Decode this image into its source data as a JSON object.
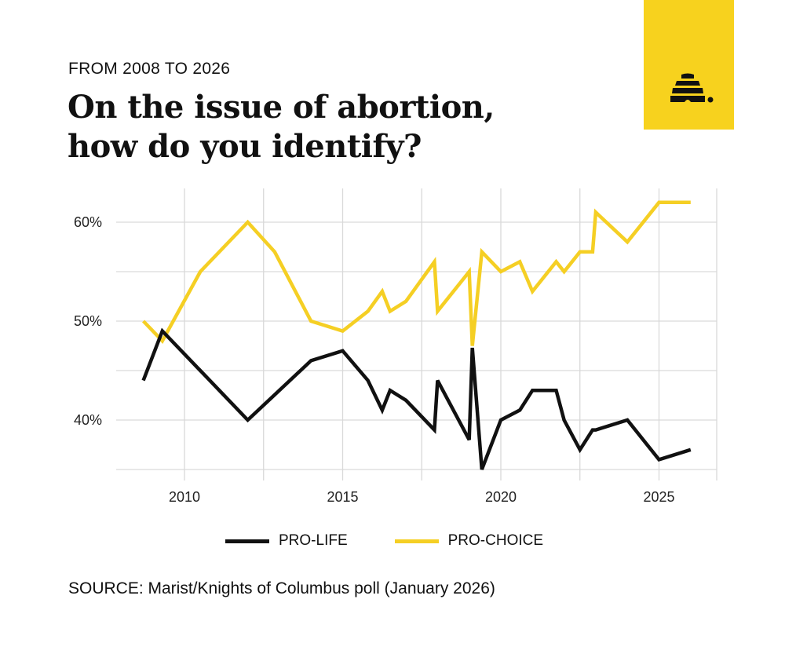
{
  "header": {
    "subtitle": "FROM 2008 TO 2026",
    "title_line1": "On the issue of abortion,",
    "title_line2": "how do you identify?"
  },
  "logo": {
    "icon": "beehive-icon",
    "background": "#f7d21e"
  },
  "source": "SOURCE: Marist/Knights of Columbus poll (January 2026)",
  "chart_data": {
    "type": "line",
    "title": "On the issue of abortion, how do you identify?",
    "xlabel": "",
    "ylabel": "",
    "xlim": [
      2008,
      2026.8
    ],
    "ylim": [
      34.5,
      63.5
    ],
    "grid": true,
    "legend_position": "bottom-center",
    "x_ticks": [
      {
        "value": 2010,
        "label": "2010"
      },
      {
        "value": 2015,
        "label": "2015"
      },
      {
        "value": 2020,
        "label": "2020"
      },
      {
        "value": 2025,
        "label": "2025"
      }
    ],
    "y_ticks": [
      {
        "value": 60,
        "label": "60%"
      },
      {
        "value": 50,
        "label": "50%"
      },
      {
        "value": 40,
        "label": "40%"
      }
    ],
    "series": [
      {
        "name": "PRO-LIFE",
        "color": "#111111",
        "points": [
          [
            2008.7,
            44
          ],
          [
            2009.3,
            49
          ],
          [
            2012,
            40
          ],
          [
            2014,
            46
          ],
          [
            2015,
            47
          ],
          [
            2015.8,
            44
          ],
          [
            2016.25,
            41
          ],
          [
            2016.5,
            43
          ],
          [
            2017,
            42
          ],
          [
            2017.9,
            39
          ],
          [
            2018,
            44
          ],
          [
            2019,
            38
          ],
          [
            2019.1,
            47.3
          ],
          [
            2019.4,
            35
          ],
          [
            2020,
            40
          ],
          [
            2020.6,
            41
          ],
          [
            2021,
            43
          ],
          [
            2021.75,
            43
          ],
          [
            2022,
            40
          ],
          [
            2022.5,
            37
          ],
          [
            2022.9,
            39
          ],
          [
            2023,
            39
          ],
          [
            2024,
            40
          ],
          [
            2025,
            36
          ],
          [
            2026,
            37
          ]
        ]
      },
      {
        "name": "PRO-CHOICE",
        "color": "#f5cf24",
        "points": [
          [
            2008.7,
            50
          ],
          [
            2009.3,
            48
          ],
          [
            2010.5,
            55
          ],
          [
            2012,
            60
          ],
          [
            2012.85,
            57
          ],
          [
            2014,
            50
          ],
          [
            2015,
            49
          ],
          [
            2015.8,
            51
          ],
          [
            2016.25,
            53
          ],
          [
            2016.5,
            51
          ],
          [
            2017,
            52
          ],
          [
            2017.9,
            56
          ],
          [
            2018,
            51
          ],
          [
            2019,
            55
          ],
          [
            2019.1,
            47.5
          ],
          [
            2019.4,
            57
          ],
          [
            2020,
            55
          ],
          [
            2020.6,
            56
          ],
          [
            2021,
            53
          ],
          [
            2021.75,
            56
          ],
          [
            2022,
            55
          ],
          [
            2022.5,
            57
          ],
          [
            2022.9,
            57
          ],
          [
            2023,
            61
          ],
          [
            2024,
            58
          ],
          [
            2025,
            62
          ],
          [
            2026,
            62
          ]
        ]
      }
    ]
  }
}
